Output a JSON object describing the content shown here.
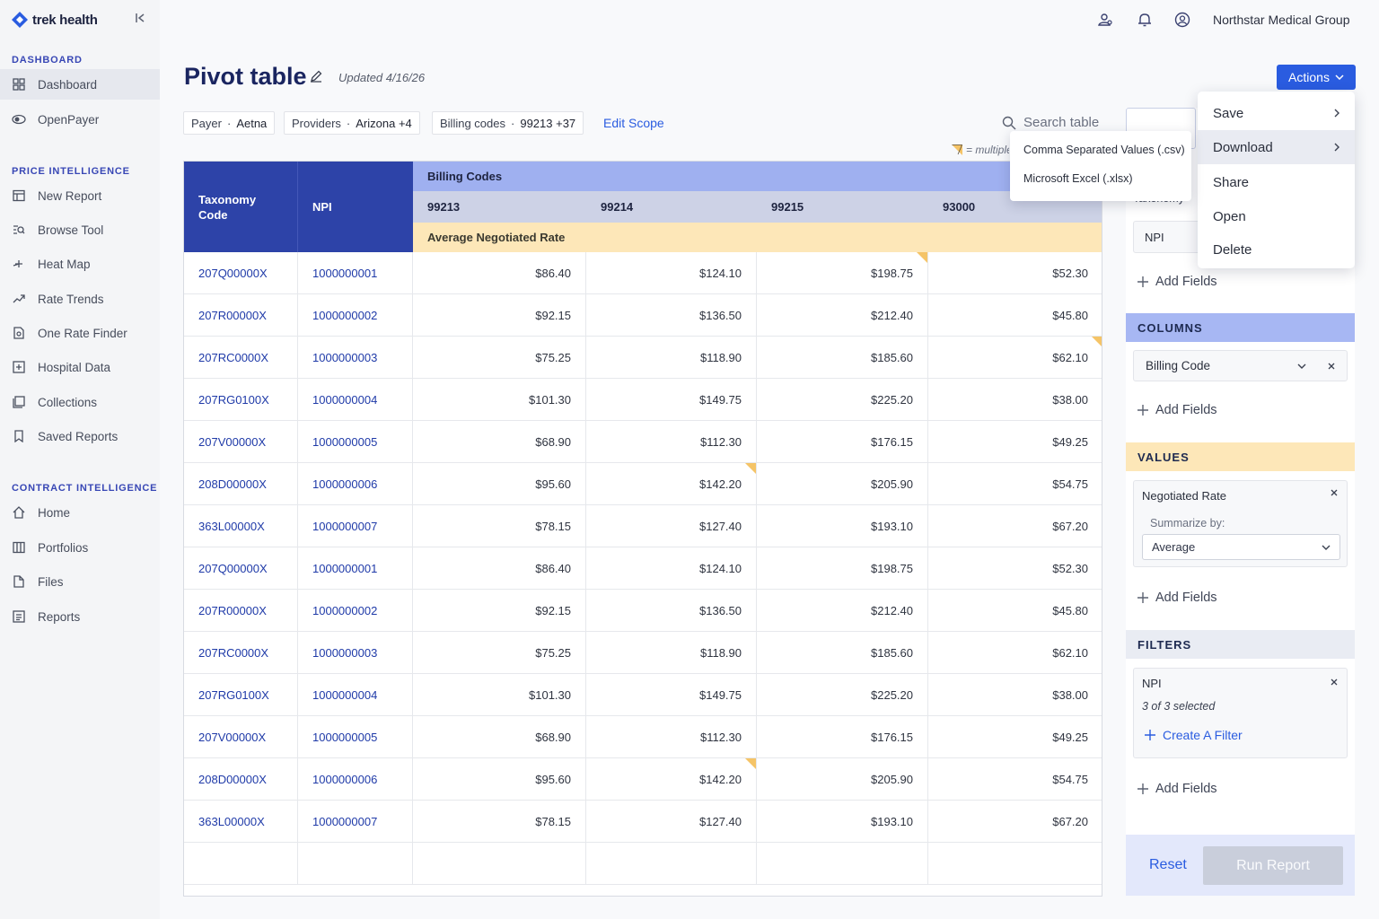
{
  "brand": {
    "name": "trek health",
    "accent": "#2a5ce0",
    "navy": "#2d43a8"
  },
  "sidebar": {
    "collapse_icon": "collapse-left-icon",
    "sections": [
      {
        "label": "DASHBOARD",
        "items": [
          {
            "label": "Dashboard",
            "icon": "grid-icon",
            "active": true
          },
          {
            "label": "OpenPayer",
            "icon": "eye-icon"
          }
        ]
      },
      {
        "label": "PRICE INTELLIGENCE",
        "items": [
          {
            "label": "New Report",
            "icon": "table-icon"
          },
          {
            "label": "Browse Tool",
            "icon": "list-search-icon"
          },
          {
            "label": "Heat Map",
            "icon": "sparkle-icon"
          },
          {
            "label": "Rate Trends",
            "icon": "trend-icon"
          },
          {
            "label": "One Rate Finder",
            "icon": "document-search-icon"
          },
          {
            "label": "Hospital Data",
            "icon": "hospital-icon"
          },
          {
            "label": "Collections",
            "icon": "collections-icon"
          },
          {
            "label": "Saved Reports",
            "icon": "bookmark-icon"
          }
        ]
      },
      {
        "label": "CONTRACT INTELLIGENCE",
        "items": [
          {
            "label": "Home",
            "icon": "home-icon"
          },
          {
            "label": "Portfolios",
            "icon": "columns-icon"
          },
          {
            "label": "Files",
            "icon": "file-icon"
          },
          {
            "label": "Reports",
            "icon": "report-icon"
          }
        ]
      }
    ]
  },
  "topbar": {
    "org_name": "Northstar Medical Group",
    "icons": [
      "users-icon",
      "bell-icon",
      "account-icon"
    ]
  },
  "page": {
    "title": "Pivot table",
    "updated": "Updated 4/16/26",
    "actions_label": "Actions"
  },
  "scope": {
    "chips": [
      {
        "label": "Payer",
        "value": "Aetna"
      },
      {
        "label": "Providers",
        "value": "Arizona +4"
      },
      {
        "label": "Billing codes",
        "value": "99213 +37"
      }
    ],
    "edit_label": "Edit Scope"
  },
  "search": {
    "placeholder": "Search table"
  },
  "legend_note": "= multiple",
  "table": {
    "row_headers": [
      "Taxonomy Code",
      "NPI"
    ],
    "group_header": "Billing Codes",
    "codes": [
      "99213",
      "99214",
      "99215",
      "93000"
    ],
    "value_header": "Average Negotiated Rate",
    "rows": [
      {
        "taxonomy": "207Q00000X",
        "npi": "1000000001",
        "values": [
          "$86.40",
          "$124.10",
          "$198.75",
          "$52.30"
        ],
        "flags": [
          false,
          false,
          true,
          false
        ]
      },
      {
        "taxonomy": "207R00000X",
        "npi": "1000000002",
        "values": [
          "$92.15",
          "$136.50",
          "$212.40",
          "$45.80"
        ],
        "flags": [
          false,
          false,
          false,
          false
        ]
      },
      {
        "taxonomy": "207RC0000X",
        "npi": "1000000003",
        "values": [
          "$75.25",
          "$118.90",
          "$185.60",
          "$62.10"
        ],
        "flags": [
          false,
          false,
          false,
          true
        ]
      },
      {
        "taxonomy": "207RG0100X",
        "npi": "1000000004",
        "values": [
          "$101.30",
          "$149.75",
          "$225.20",
          "$38.00"
        ],
        "flags": [
          false,
          false,
          false,
          false
        ]
      },
      {
        "taxonomy": "207V00000X",
        "npi": "1000000005",
        "values": [
          "$68.90",
          "$112.30",
          "$176.15",
          "$49.25"
        ],
        "flags": [
          false,
          false,
          false,
          false
        ]
      },
      {
        "taxonomy": "208D00000X",
        "npi": "1000000006",
        "values": [
          "$95.60",
          "$142.20",
          "$205.90",
          "$54.75"
        ],
        "flags": [
          false,
          true,
          false,
          false
        ]
      },
      {
        "taxonomy": "363L00000X",
        "npi": "1000000007",
        "values": [
          "$78.15",
          "$127.40",
          "$193.10",
          "$67.20"
        ],
        "flags": [
          false,
          false,
          false,
          false
        ]
      },
      {
        "taxonomy": "207Q00000X",
        "npi": "1000000001",
        "values": [
          "$86.40",
          "$124.10",
          "$198.75",
          "$52.30"
        ],
        "flags": [
          false,
          false,
          false,
          false
        ]
      },
      {
        "taxonomy": "207R00000X",
        "npi": "1000000002",
        "values": [
          "$92.15",
          "$136.50",
          "$212.40",
          "$45.80"
        ],
        "flags": [
          false,
          false,
          false,
          false
        ]
      },
      {
        "taxonomy": "207RC0000X",
        "npi": "1000000003",
        "values": [
          "$75.25",
          "$118.90",
          "$185.60",
          "$62.10"
        ],
        "flags": [
          false,
          false,
          false,
          false
        ]
      },
      {
        "taxonomy": "207RG0100X",
        "npi": "1000000004",
        "values": [
          "$101.30",
          "$149.75",
          "$225.20",
          "$38.00"
        ],
        "flags": [
          false,
          false,
          false,
          false
        ]
      },
      {
        "taxonomy": "207V00000X",
        "npi": "1000000005",
        "values": [
          "$68.90",
          "$112.30",
          "$176.15",
          "$49.25"
        ],
        "flags": [
          false,
          false,
          false,
          false
        ]
      },
      {
        "taxonomy": "208D00000X",
        "npi": "1000000006",
        "values": [
          "$95.60",
          "$142.20",
          "$205.90",
          "$54.75"
        ],
        "flags": [
          false,
          true,
          false,
          false
        ]
      },
      {
        "taxonomy": "363L00000X",
        "npi": "1000000007",
        "values": [
          "$78.15",
          "$127.40",
          "$193.10",
          "$67.20"
        ],
        "flags": [
          false,
          false,
          false,
          false
        ]
      }
    ]
  },
  "actions_menu": {
    "items": [
      {
        "label": "Save",
        "has_submenu": true
      },
      {
        "label": "Download",
        "has_submenu": true,
        "highlighted": true
      },
      {
        "label": "Share"
      },
      {
        "label": "Open"
      },
      {
        "label": "Delete"
      }
    ]
  },
  "download_submenu": {
    "items": [
      "Comma Separated Values (.csv)",
      "Microsoft Excel (.xlsx)"
    ]
  },
  "panel": {
    "rows_fields": [
      "Taxonomy",
      "NPI"
    ],
    "add_fields": "Add Fields",
    "columns": {
      "title": "COLUMNS",
      "field": "Billing Code"
    },
    "values": {
      "title": "VALUES",
      "field": "Negotiated Rate",
      "summarize_label": "Summarize by:",
      "summarize_value": "Average"
    },
    "filters": {
      "title": "FILTERS",
      "field": "NPI",
      "detail": "3 of 3 selected",
      "create_label": "Create A Filter"
    },
    "reset": "Reset",
    "run": "Run Report"
  }
}
